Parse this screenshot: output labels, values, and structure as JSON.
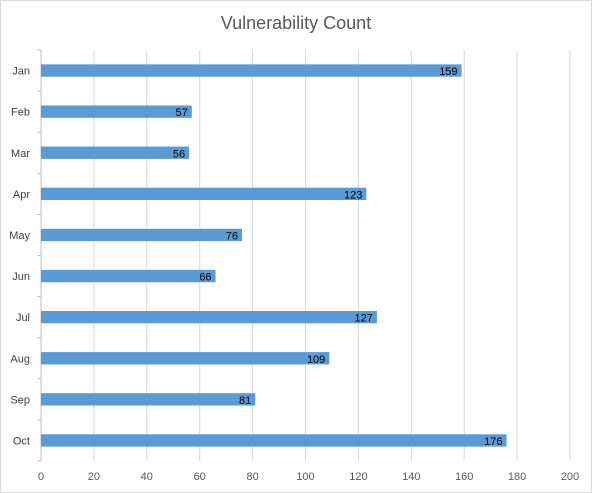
{
  "chart_data": {
    "type": "bar",
    "orientation": "horizontal",
    "title": "Vulnerability Count",
    "xlabel": "",
    "ylabel": "",
    "categories": [
      "Jan",
      "Feb",
      "Mar",
      "Apr",
      "May",
      "Jun",
      "Jul",
      "Aug",
      "Sep",
      "Oct"
    ],
    "values": [
      159,
      57,
      56,
      123,
      76,
      66,
      127,
      109,
      81,
      176
    ],
    "xlim": [
      0,
      200
    ],
    "x_ticks": [
      0,
      20,
      40,
      60,
      80,
      100,
      120,
      140,
      160,
      180,
      200
    ],
    "grid": "vertical",
    "legend": "none",
    "colors": {
      "bar": "#5b9bd5",
      "grid": "#d9d9d9",
      "axis": "#bfbfbf"
    }
  }
}
